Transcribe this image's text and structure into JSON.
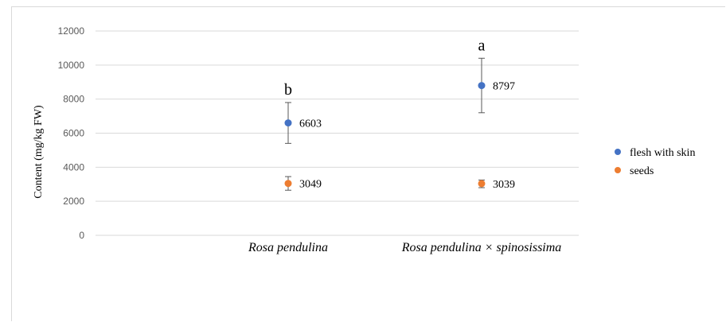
{
  "chart_data": {
    "type": "scatter",
    "title": "",
    "xlabel": "",
    "ylabel": "Content (mg/kg FW)",
    "categories": [
      "Rosa pendulina",
      "Rosa pendulina × spinosissima"
    ],
    "ylim": [
      0,
      12000
    ],
    "yticks": [
      "0",
      "2000",
      "4000",
      "6000",
      "8000",
      "10000",
      "12000"
    ],
    "grid": true,
    "legend_position": "right",
    "series": [
      {
        "name": "flesh with skin",
        "color": "#4472c4",
        "values": [
          6603,
          8797
        ],
        "labels": [
          "6603",
          "8797"
        ],
        "error_low": [
          5400,
          7200
        ],
        "error_high": [
          7800,
          10400
        ],
        "significance": [
          "b",
          "a"
        ]
      },
      {
        "name": "seeds",
        "color": "#ed7d31",
        "values": [
          3049,
          3039
        ],
        "labels": [
          "3049",
          "3039"
        ],
        "error_low": [
          2650,
          2800
        ],
        "error_high": [
          3450,
          3250
        ]
      }
    ]
  }
}
